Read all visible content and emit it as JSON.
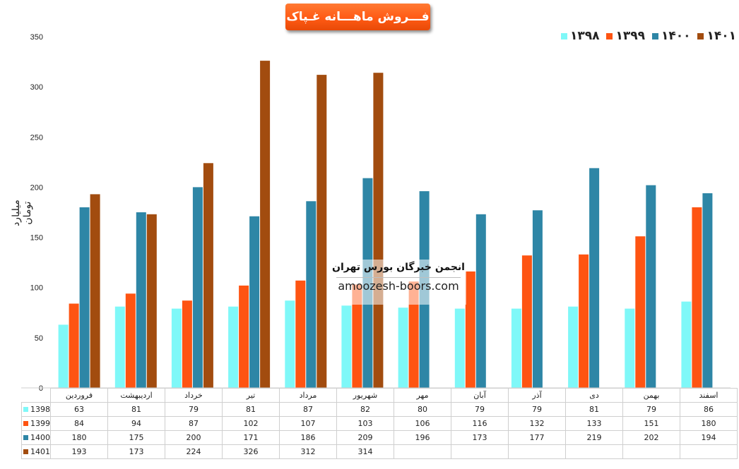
{
  "title": "فـــروش ماهـــانه غـپاک",
  "ylabel": "میلیارد تومان",
  "watermark": {
    "title": "انجمن خبرگان بورس تهران",
    "site": "amoozesh-boors.com"
  },
  "chart_data": {
    "type": "bar",
    "categories": [
      "فروردین",
      "اردیبهشت",
      "خرداد",
      "تیر",
      "مرداد",
      "شهریور",
      "مهر",
      "آبان",
      "آذر",
      "دی",
      "بهمن",
      "اسفند"
    ],
    "series": [
      {
        "name": "1398",
        "legend_label": "۱۳۹۸",
        "color": "#7ff8f8",
        "values": [
          63,
          81,
          79,
          81,
          87,
          82,
          80,
          79,
          79,
          81,
          79,
          86
        ]
      },
      {
        "name": "1399",
        "legend_label": "۱۳۹۹",
        "color": "#fe5412",
        "values": [
          84,
          94,
          87,
          102,
          107,
          103,
          106,
          116,
          132,
          133,
          151,
          180
        ]
      },
      {
        "name": "1400",
        "legend_label": "۱۴۰۰",
        "color": "#2e86a6",
        "values": [
          180,
          175,
          200,
          171,
          186,
          209,
          196,
          173,
          177,
          219,
          202,
          194
        ]
      },
      {
        "name": "1401",
        "legend_label": "۱۴۰۱",
        "color": "#a24c0f",
        "values": [
          193,
          173,
          224,
          326,
          312,
          314,
          null,
          null,
          null,
          null,
          null,
          null
        ]
      }
    ],
    "ylim": [
      0,
      350
    ],
    "yticks": [
      0,
      50,
      100,
      150,
      200,
      250,
      300,
      350
    ],
    "grid": false,
    "legend_position": "top-right"
  }
}
